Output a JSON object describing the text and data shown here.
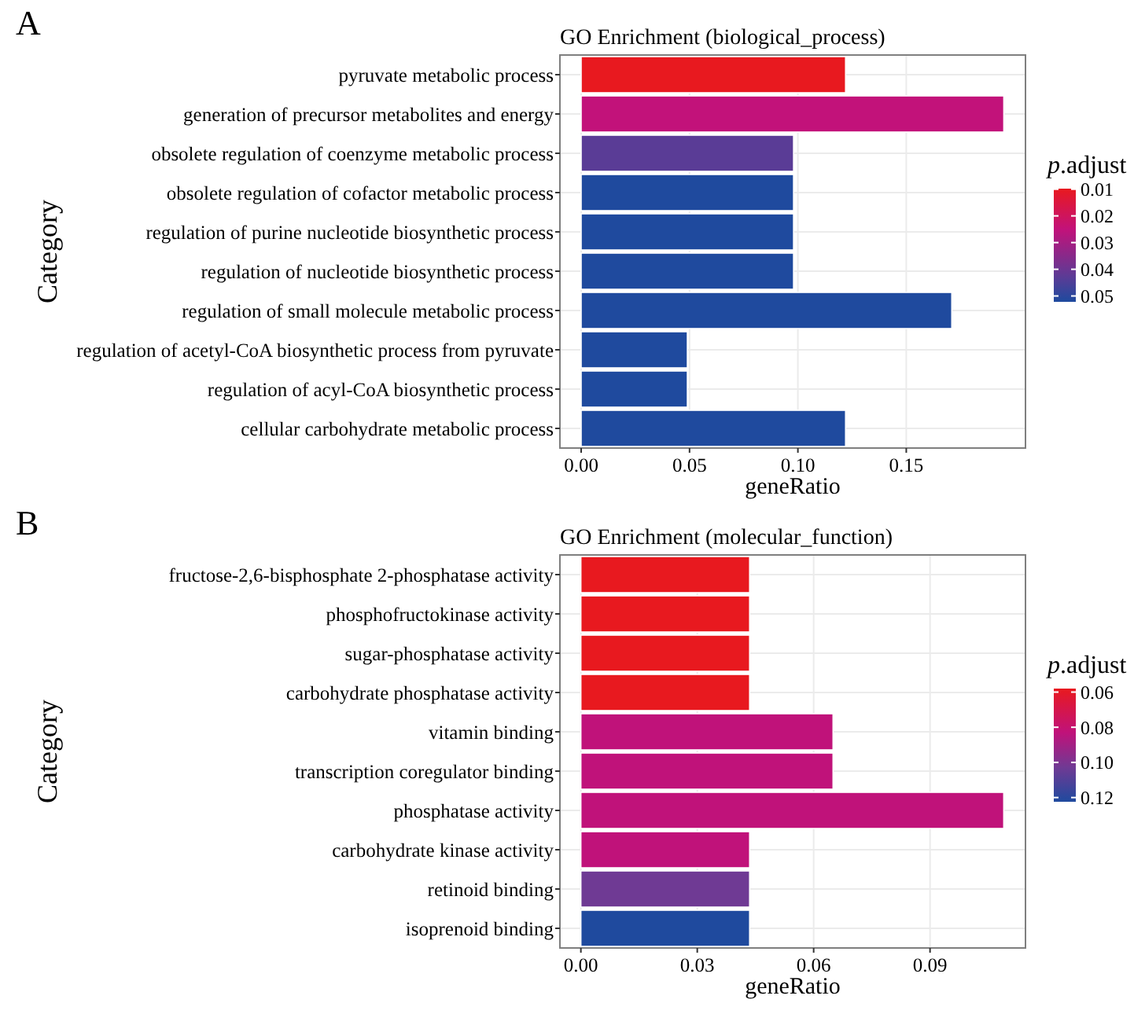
{
  "chart_data": [
    {
      "type": "bar",
      "orientation": "horizontal",
      "title": "GO Enrichment (biological_process)",
      "xlabel": "geneRatio",
      "ylabel": "Category",
      "clabel": "p.adjust",
      "annotations": [
        "A"
      ],
      "grid": true,
      "categories": [
        "pyruvate metabolic process",
        "generation of precursor metabolites and energy",
        "obsolete regulation of coenzyme metabolic process",
        "obsolete regulation of cofactor metabolic process",
        "regulation of purine nucleotide biosynthetic process",
        "regulation of nucleotide biosynthetic process",
        "regulation of small molecule metabolic process",
        "regulation of acetyl-CoA biosynthetic process from pyruvate",
        "regulation of acyl-CoA biosynthetic process",
        "cellular carbohydrate metabolic process"
      ],
      "values": [
        0.122,
        0.195,
        0.098,
        0.098,
        0.098,
        0.098,
        0.171,
        0.049,
        0.049,
        0.122
      ],
      "cvalues": [
        0.0098,
        0.025,
        0.043,
        0.052,
        0.052,
        0.052,
        0.052,
        0.052,
        0.052,
        0.052
      ],
      "colors": [
        "#e8191f",
        "#c2127a",
        "#5a3c96",
        "#1f4a9e",
        "#1f4a9e",
        "#1f4a9e",
        "#1f4a9e",
        "#1f4a9e",
        "#1f4a9e",
        "#1f4a9e"
      ],
      "xlim": [
        -0.0098,
        0.205
      ],
      "xticks": [
        {
          "value": 0,
          "label": "0.00"
        },
        {
          "value": 0.05,
          "label": "0.05"
        },
        {
          "value": 0.1,
          "label": "0.10"
        },
        {
          "value": 0.15,
          "label": "0.15"
        }
      ],
      "clim": [
        0.0098,
        0.0522
      ],
      "cticks": [
        0.01,
        0.02,
        0.03,
        0.04,
        0.05
      ]
    },
    {
      "type": "bar",
      "orientation": "horizontal",
      "title": "GO Enrichment (molecular_function)",
      "xlabel": "geneRatio",
      "ylabel": "Category",
      "clabel": "p.adjust",
      "annotations": [
        "B"
      ],
      "grid": true,
      "categories": [
        "fructose-2,6-bisphosphate 2-phosphatase activity",
        "phosphofructokinase activity",
        "sugar-phosphatase activity",
        "carbohydrate phosphatase activity",
        "vitamin binding",
        "transcription coregulator binding",
        "phosphatase activity",
        "carbohydrate kinase activity",
        "retinoid binding",
        "isoprenoid binding"
      ],
      "values": [
        0.0435,
        0.0435,
        0.0435,
        0.0435,
        0.065,
        0.065,
        0.109,
        0.0435,
        0.0435,
        0.0435
      ],
      "cvalues": [
        0.058,
        0.058,
        0.058,
        0.058,
        0.083,
        0.083,
        0.083,
        0.083,
        0.103,
        0.1224
      ],
      "colors": [
        "#e8191f",
        "#e8191f",
        "#e8191f",
        "#e8191f",
        "#c0127a",
        "#c0127a",
        "#c0127a",
        "#c0127a",
        "#6f3a94",
        "#1f4a9e"
      ],
      "xlim": [
        -0.0054,
        0.1146
      ],
      "xticks": [
        {
          "value": 0,
          "label": "0.00"
        },
        {
          "value": 0.03,
          "label": "0.03"
        },
        {
          "value": 0.06,
          "label": "0.06"
        },
        {
          "value": 0.09,
          "label": "0.09"
        }
      ],
      "clim": [
        0.058,
        0.1224
      ],
      "cticks": [
        0.06,
        0.08,
        {
          "value": 0.1,
          "label": "0.10"
        },
        0.12
      ]
    }
  ]
}
